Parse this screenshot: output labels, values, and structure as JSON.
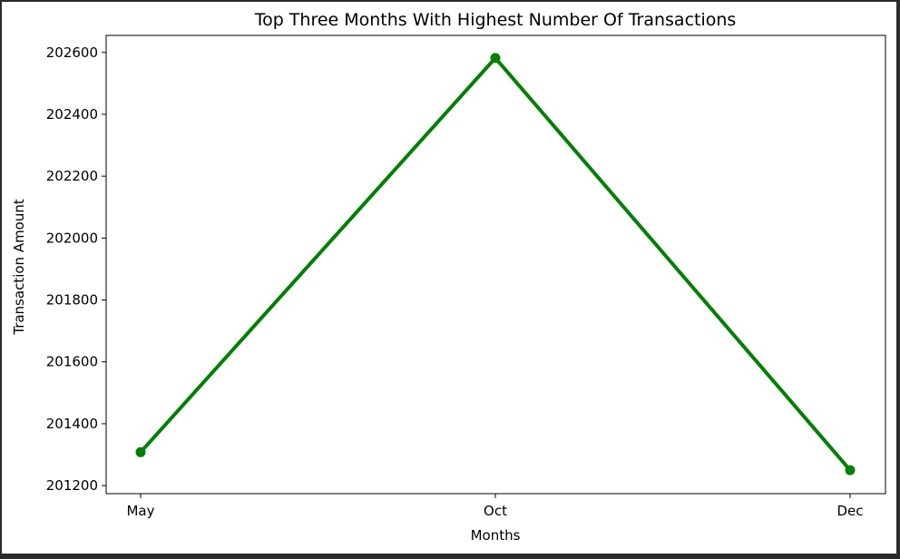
{
  "chart_data": {
    "type": "line",
    "title": "Top Three Months With Highest Number Of Transactions",
    "xlabel": "Months",
    "ylabel": "Transaction Amount",
    "categories": [
      "May",
      "Oct",
      "Dec"
    ],
    "series": [
      {
        "values": [
          201308,
          202582,
          201250
        ],
        "color": "#008000",
        "marker": "circle"
      }
    ],
    "yticks": [
      201200,
      201400,
      201600,
      201800,
      202000,
      202200,
      202400,
      202600
    ],
    "ylim": [
      201174,
      202655
    ],
    "grid": false,
    "legend": false
  }
}
